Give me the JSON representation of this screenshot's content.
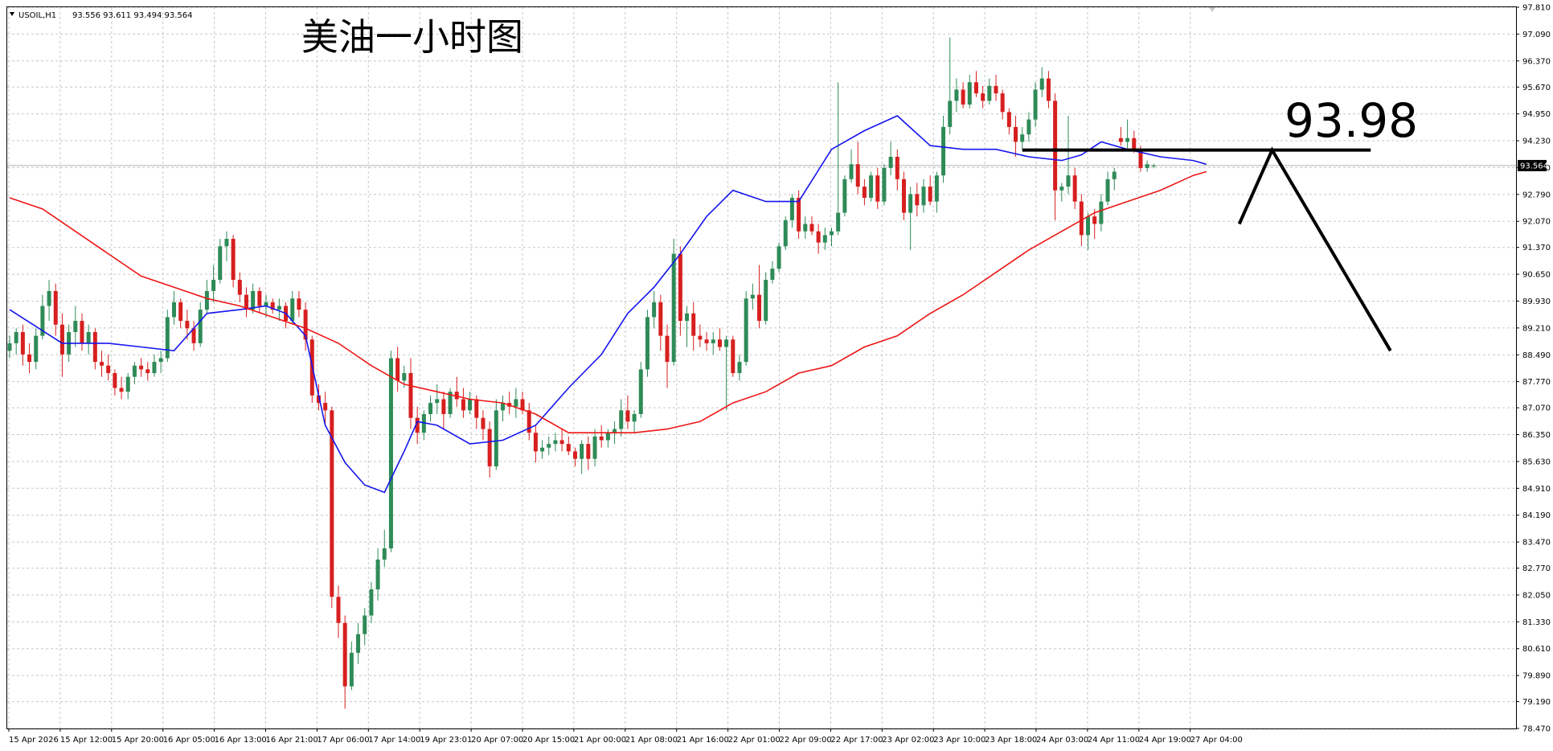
{
  "header": {
    "symbol": "USOIL,H1",
    "ohlc": "93.556 93.611 93.494 93.564"
  },
  "annotation": {
    "title": "美油一小时图",
    "level_label": "93.98"
  },
  "colors": {
    "background": "#ffffff",
    "grid": "#c8c8c8",
    "bull_candle": "#2e8b57",
    "bear_candle": "#d71f1f",
    "ma_fast": "#1515ee",
    "ma_slow": "#ee1515",
    "drawing": "#000000"
  },
  "chart_data": {
    "type": "candlestick",
    "symbol": "USOIL",
    "timeframe": "H1",
    "ylim": [
      78.47,
      97.81
    ],
    "yticks": [
      "97.810",
      "97.090",
      "96.370",
      "95.670",
      "94.950",
      "94.230",
      "93.510",
      "92.790",
      "92.070",
      "91.370",
      "90.650",
      "89.930",
      "89.210",
      "88.490",
      "87.770",
      "87.070",
      "86.350",
      "85.630",
      "84.910",
      "84.190",
      "83.470",
      "82.770",
      "82.050",
      "81.330",
      "80.610",
      "79.890",
      "79.190",
      "78.470"
    ],
    "xticks": [
      "15 Apr 2026",
      "15 Apr 12:00",
      "15 Apr 20:00",
      "16 Apr 05:00",
      "16 Apr 13:00",
      "16 Apr 21:00",
      "17 Apr 06:00",
      "17 Apr 14:00",
      "19 Apr 23:01",
      "20 Apr 07:00",
      "20 Apr 15:00",
      "21 Apr 00:00",
      "21 Apr 08:00",
      "21 Apr 16:00",
      "22 Apr 01:00",
      "22 Apr 09:00",
      "22 Apr 17:00",
      "23 Apr 02:00",
      "23 Apr 10:00",
      "23 Apr 18:00",
      "24 Apr 03:00",
      "24 Apr 11:00",
      "24 Apr 19:00",
      "27 Apr 04:00"
    ],
    "current_price": "93.564",
    "grid": true,
    "candles_ohlc": [
      [
        88.6,
        89.0,
        88.4,
        88.8
      ],
      [
        88.8,
        89.2,
        88.5,
        89.1
      ],
      [
        89.1,
        89.3,
        88.2,
        88.5
      ],
      [
        88.5,
        88.8,
        88.0,
        88.3
      ],
      [
        88.3,
        89.2,
        88.1,
        89.0
      ],
      [
        89.0,
        90.1,
        88.9,
        89.8
      ],
      [
        89.8,
        90.5,
        89.4,
        90.2
      ],
      [
        90.2,
        90.4,
        89.0,
        89.3
      ],
      [
        89.3,
        89.6,
        87.9,
        88.5
      ],
      [
        88.5,
        89.3,
        88.3,
        89.1
      ],
      [
        89.1,
        89.8,
        88.7,
        89.4
      ],
      [
        89.4,
        89.6,
        88.6,
        88.8
      ],
      [
        88.8,
        89.3,
        88.5,
        89.1
      ],
      [
        89.1,
        89.2,
        88.1,
        88.3
      ],
      [
        88.3,
        88.6,
        87.9,
        88.2
      ],
      [
        88.2,
        88.5,
        87.8,
        88.0
      ],
      [
        88.0,
        88.1,
        87.4,
        87.6
      ],
      [
        87.6,
        87.9,
        87.3,
        87.5
      ],
      [
        87.5,
        88.0,
        87.3,
        87.9
      ],
      [
        87.9,
        88.3,
        87.7,
        88.2
      ],
      [
        88.2,
        88.4,
        87.9,
        88.1
      ],
      [
        88.1,
        88.3,
        87.8,
        88.0
      ],
      [
        88.0,
        88.5,
        87.9,
        88.3
      ],
      [
        88.3,
        88.6,
        88.0,
        88.4
      ],
      [
        88.4,
        89.7,
        88.3,
        89.5
      ],
      [
        89.5,
        90.2,
        89.3,
        89.9
      ],
      [
        89.9,
        90.0,
        89.2,
        89.4
      ],
      [
        89.4,
        89.7,
        88.9,
        89.2
      ],
      [
        89.2,
        89.4,
        88.6,
        88.8
      ],
      [
        88.8,
        89.9,
        88.7,
        89.7
      ],
      [
        89.7,
        90.5,
        89.6,
        90.2
      ],
      [
        90.2,
        90.9,
        89.9,
        90.5
      ],
      [
        90.5,
        91.6,
        90.4,
        91.4
      ],
      [
        91.4,
        91.8,
        91.0,
        91.6
      ],
      [
        91.6,
        91.7,
        90.3,
        90.5
      ],
      [
        90.5,
        90.7,
        89.9,
        90.1
      ],
      [
        90.1,
        90.3,
        89.5,
        89.7
      ],
      [
        89.7,
        90.4,
        89.6,
        90.2
      ],
      [
        90.2,
        90.3,
        89.6,
        89.8
      ],
      [
        89.8,
        90.1,
        89.5,
        89.9
      ],
      [
        89.9,
        90.0,
        89.6,
        89.7
      ],
      [
        89.7,
        90.0,
        89.4,
        89.8
      ],
      [
        89.8,
        89.9,
        89.2,
        89.4
      ],
      [
        89.4,
        90.2,
        89.3,
        90.0
      ],
      [
        90.0,
        90.2,
        89.5,
        89.7
      ],
      [
        89.7,
        89.9,
        88.6,
        88.9
      ],
      [
        88.9,
        89.0,
        87.2,
        87.4
      ],
      [
        87.4,
        87.7,
        87.0,
        87.2
      ],
      [
        87.2,
        87.5,
        86.6,
        87.0
      ],
      [
        87.0,
        87.1,
        81.7,
        82.0
      ],
      [
        82.0,
        82.3,
        80.9,
        81.3
      ],
      [
        81.3,
        81.5,
        79.0,
        79.6
      ],
      [
        79.6,
        80.8,
        79.5,
        80.5
      ],
      [
        80.5,
        81.3,
        80.2,
        81.0
      ],
      [
        81.0,
        81.7,
        80.7,
        81.5
      ],
      [
        81.5,
        82.4,
        81.3,
        82.2
      ],
      [
        82.2,
        83.3,
        81.9,
        83.0
      ],
      [
        83.0,
        83.8,
        82.8,
        83.3
      ],
      [
        83.3,
        88.6,
        83.2,
        88.4
      ],
      [
        88.4,
        88.7,
        87.5,
        87.8
      ],
      [
        87.8,
        88.2,
        87.6,
        88.0
      ],
      [
        88.0,
        88.4,
        86.5,
        86.8
      ],
      [
        86.8,
        87.1,
        86.1,
        86.4
      ],
      [
        86.4,
        87.0,
        86.2,
        86.9
      ],
      [
        86.9,
        87.4,
        86.7,
        87.2
      ],
      [
        87.2,
        87.7,
        86.9,
        87.3
      ],
      [
        87.3,
        87.5,
        86.5,
        86.9
      ],
      [
        86.9,
        87.6,
        86.8,
        87.5
      ],
      [
        87.5,
        87.9,
        87.1,
        87.3
      ],
      [
        87.3,
        87.6,
        86.8,
        87.0
      ],
      [
        87.0,
        87.5,
        86.9,
        87.3
      ],
      [
        87.3,
        87.4,
        86.5,
        86.8
      ],
      [
        86.8,
        87.0,
        86.2,
        86.5
      ],
      [
        86.5,
        86.7,
        85.2,
        85.5
      ],
      [
        85.5,
        87.3,
        85.4,
        87.0
      ],
      [
        87.0,
        87.4,
        86.7,
        87.2
      ],
      [
        87.2,
        87.5,
        86.9,
        87.1
      ],
      [
        87.1,
        87.6,
        86.8,
        87.3
      ],
      [
        87.3,
        87.5,
        86.9,
        87.0
      ],
      [
        87.0,
        87.2,
        86.2,
        86.4
      ],
      [
        86.4,
        86.6,
        85.6,
        85.9
      ],
      [
        85.9,
        86.2,
        85.7,
        86.0
      ],
      [
        86.0,
        86.3,
        85.8,
        86.1
      ],
      [
        86.1,
        86.4,
        85.9,
        86.2
      ],
      [
        86.2,
        86.5,
        85.9,
        86.1
      ],
      [
        86.1,
        86.3,
        85.8,
        85.9
      ],
      [
        85.9,
        86.0,
        85.5,
        85.7
      ],
      [
        85.7,
        86.2,
        85.3,
        86.1
      ],
      [
        86.1,
        86.3,
        85.4,
        85.7
      ],
      [
        85.7,
        86.5,
        85.5,
        86.3
      ],
      [
        86.3,
        86.6,
        86.0,
        86.2
      ],
      [
        86.2,
        86.5,
        86.0,
        86.4
      ],
      [
        86.4,
        86.7,
        86.1,
        86.5
      ],
      [
        86.5,
        87.3,
        86.3,
        87.0
      ],
      [
        87.0,
        87.4,
        86.5,
        86.7
      ],
      [
        86.7,
        87.0,
        86.4,
        86.9
      ],
      [
        86.9,
        88.3,
        86.8,
        88.1
      ],
      [
        88.1,
        89.7,
        87.9,
        89.5
      ],
      [
        89.5,
        90.2,
        89.2,
        89.9
      ],
      [
        89.9,
        90.1,
        88.6,
        89.0
      ],
      [
        89.0,
        89.3,
        87.6,
        88.3
      ],
      [
        88.3,
        91.6,
        88.2,
        91.2
      ],
      [
        91.2,
        91.4,
        89.0,
        89.4
      ],
      [
        89.4,
        89.8,
        88.7,
        89.6
      ],
      [
        89.6,
        89.9,
        88.6,
        89.0
      ],
      [
        89.0,
        89.3,
        88.7,
        88.9
      ],
      [
        88.9,
        89.1,
        88.6,
        88.8
      ],
      [
        88.8,
        89.1,
        88.5,
        88.9
      ],
      [
        88.9,
        89.2,
        88.6,
        88.7
      ],
      [
        88.7,
        89.0,
        87.0,
        88.9
      ],
      [
        88.9,
        89.0,
        87.9,
        88.0
      ],
      [
        88.0,
        88.5,
        87.8,
        88.3
      ],
      [
        88.3,
        90.2,
        88.2,
        90.0
      ],
      [
        90.0,
        90.4,
        89.7,
        90.1
      ],
      [
        90.1,
        90.9,
        89.2,
        89.4
      ],
      [
        89.4,
        90.7,
        89.3,
        90.5
      ],
      [
        90.5,
        91.0,
        90.4,
        90.8
      ],
      [
        90.8,
        91.5,
        90.7,
        91.4
      ],
      [
        91.4,
        92.2,
        91.3,
        92.1
      ],
      [
        92.1,
        92.8,
        91.9,
        92.7
      ],
      [
        92.7,
        92.9,
        91.6,
        91.8
      ],
      [
        91.8,
        92.2,
        91.6,
        92.0
      ],
      [
        92.0,
        92.2,
        91.7,
        91.8
      ],
      [
        91.8,
        92.0,
        91.2,
        91.5
      ],
      [
        91.5,
        91.9,
        91.3,
        91.7
      ],
      [
        91.7,
        91.9,
        91.4,
        91.8
      ],
      [
        91.8,
        95.8,
        91.7,
        92.3
      ],
      [
        92.3,
        93.3,
        92.2,
        93.2
      ],
      [
        93.2,
        94.0,
        93.1,
        93.6
      ],
      [
        93.6,
        94.2,
        92.8,
        93.0
      ],
      [
        93.0,
        93.2,
        92.5,
        92.7
      ],
      [
        92.7,
        93.4,
        92.6,
        93.3
      ],
      [
        93.3,
        93.5,
        92.4,
        92.6
      ],
      [
        92.6,
        93.6,
        92.5,
        93.5
      ],
      [
        93.5,
        94.2,
        93.3,
        93.8
      ],
      [
        93.8,
        94.0,
        92.9,
        93.2
      ],
      [
        93.2,
        93.4,
        92.1,
        92.3
      ],
      [
        92.3,
        93.0,
        91.3,
        92.8
      ],
      [
        92.8,
        93.1,
        92.2,
        92.5
      ],
      [
        92.5,
        93.2,
        92.3,
        93.0
      ],
      [
        93.0,
        93.3,
        92.5,
        92.6
      ],
      [
        92.6,
        93.4,
        92.3,
        93.3
      ],
      [
        93.3,
        94.9,
        93.1,
        94.6
      ],
      [
        94.6,
        97.0,
        94.4,
        95.3
      ],
      [
        95.3,
        95.9,
        95.0,
        95.6
      ],
      [
        95.6,
        95.8,
        95.1,
        95.2
      ],
      [
        95.2,
        96.0,
        95.1,
        95.8
      ],
      [
        95.8,
        96.1,
        95.4,
        95.5
      ],
      [
        95.5,
        95.7,
        95.1,
        95.3
      ],
      [
        95.3,
        95.9,
        95.2,
        95.7
      ],
      [
        95.7,
        96.0,
        95.3,
        95.5
      ],
      [
        95.5,
        95.6,
        94.8,
        95.0
      ],
      [
        95.0,
        95.1,
        94.4,
        94.6
      ],
      [
        94.6,
        94.9,
        93.8,
        94.2
      ],
      [
        94.2,
        94.6,
        94.0,
        94.4
      ],
      [
        94.4,
        95.0,
        94.2,
        94.8
      ],
      [
        94.8,
        95.8,
        94.6,
        95.6
      ],
      [
        95.6,
        96.2,
        95.4,
        95.9
      ],
      [
        95.9,
        96.1,
        95.1,
        95.3
      ],
      [
        95.3,
        95.5,
        92.1,
        92.9
      ],
      [
        92.9,
        93.1,
        92.6,
        93.0
      ],
      [
        93.0,
        94.9,
        92.8,
        93.3
      ],
      [
        93.3,
        93.5,
        92.4,
        92.6
      ],
      [
        92.6,
        92.8,
        91.4,
        91.7
      ],
      [
        91.7,
        92.3,
        91.3,
        92.2
      ],
      [
        92.2,
        92.4,
        91.6,
        92.0
      ],
      [
        92.0,
        92.8,
        91.8,
        92.6
      ],
      [
        92.6,
        93.4,
        92.5,
        93.2
      ],
      [
        93.2,
        93.5,
        92.9,
        93.4
      ],
      [
        94.3,
        94.6,
        94.1,
        94.2
      ],
      [
        94.2,
        94.8,
        94.0,
        94.3
      ],
      [
        94.3,
        94.5,
        93.9,
        94.0
      ],
      [
        94.0,
        94.1,
        93.4,
        93.5
      ],
      [
        93.5,
        93.7,
        93.4,
        93.6
      ],
      [
        93.556,
        93.611,
        93.494,
        93.564
      ]
    ],
    "series": [
      {
        "name": "",
        "color": "#1515ee",
        "x": [
          0,
          8,
          15,
          20,
          25,
          30,
          35,
          39,
          42,
          45,
          48,
          51,
          54,
          57,
          60,
          62,
          65,
          70,
          75,
          80,
          85,
          90,
          94,
          98,
          102,
          106,
          110,
          115,
          120,
          125,
          130,
          135,
          140,
          145,
          150,
          155,
          160,
          163,
          166,
          170,
          175,
          180,
          182
        ],
        "y": [
          89.7,
          88.8,
          88.8,
          88.7,
          88.6,
          89.6,
          89.7,
          89.8,
          89.6,
          89.0,
          86.6,
          85.6,
          85.0,
          84.8,
          85.9,
          86.7,
          86.6,
          86.1,
          86.2,
          86.6,
          87.6,
          88.5,
          89.6,
          90.3,
          91.2,
          92.2,
          92.9,
          92.6,
          92.6,
          94.0,
          94.5,
          94.9,
          94.1,
          94.0,
          94.0,
          93.8,
          93.7,
          93.85,
          94.2,
          94.0,
          93.8,
          93.7,
          93.6
        ]
      },
      {
        "name": "",
        "color": "#ee1515",
        "x": [
          0,
          5,
          10,
          15,
          20,
          25,
          30,
          35,
          40,
          45,
          50,
          55,
          60,
          65,
          70,
          75,
          80,
          85,
          90,
          95,
          100,
          105,
          110,
          115,
          120,
          125,
          130,
          135,
          140,
          145,
          150,
          155,
          160,
          165,
          170,
          175,
          180,
          182
        ],
        "y": [
          92.7,
          92.4,
          91.8,
          91.2,
          90.6,
          90.3,
          90.0,
          89.8,
          89.5,
          89.2,
          88.8,
          88.2,
          87.7,
          87.5,
          87.3,
          87.2,
          86.9,
          86.4,
          86.4,
          86.4,
          86.5,
          86.7,
          87.2,
          87.5,
          88.0,
          88.2,
          88.7,
          89.0,
          89.6,
          90.1,
          90.7,
          91.3,
          91.8,
          92.3,
          92.6,
          92.9,
          93.3,
          93.4
        ]
      }
    ],
    "annotations": [
      {
        "type": "hline",
        "y": 93.98,
        "x_start": 154,
        "x_end": 207
      },
      {
        "type": "polyline",
        "points": [
          [
            187,
            92.0
          ],
          [
            192,
            93.98
          ],
          [
            210,
            88.6
          ]
        ]
      }
    ]
  }
}
